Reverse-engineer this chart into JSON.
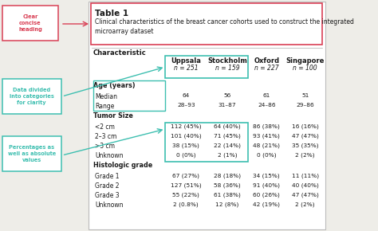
{
  "title": "Table 1",
  "subtitle": "Clinical characteristics of the breast cancer cohorts used to construct the integrated\nmicroarray dataset",
  "col_headers": [
    "Uppsala\nn = 251",
    "Stockholm\nn = 159",
    "Oxford\nn = 227",
    "Singapore\nn = 100"
  ],
  "rows": [
    {
      "category": "Age (years)",
      "bold": true,
      "values": [
        "",
        "",
        "",
        ""
      ]
    },
    {
      "category": "Median",
      "bold": false,
      "values": [
        "64",
        "56",
        "61",
        "51"
      ]
    },
    {
      "category": "Range",
      "bold": false,
      "values": [
        "28–93",
        "31–87",
        "24–86",
        "29–86"
      ]
    },
    {
      "category": "Tumor Size",
      "bold": true,
      "values": [
        "",
        "",
        "",
        ""
      ]
    },
    {
      "category": "<2 cm",
      "bold": false,
      "values": [
        "112 (45%)",
        "64 (40%)",
        "86 (38%)",
        "16 (16%)"
      ]
    },
    {
      "category": "2–3 cm",
      "bold": false,
      "values": [
        "101 (40%)",
        "71 (45%)",
        "93 (41%)",
        "47 (47%)"
      ]
    },
    {
      "category": ">3 cm",
      "bold": false,
      "values": [
        "38 (15%)",
        "22 (14%)",
        "48 (21%)",
        "35 (35%)"
      ]
    },
    {
      "category": "Unknown",
      "bold": false,
      "values": [
        "0 (0%)",
        "2 (1%)",
        "0 (0%)",
        "2 (2%)"
      ]
    },
    {
      "category": "Histologic grade",
      "bold": true,
      "values": [
        "",
        "",
        "",
        ""
      ]
    },
    {
      "category": "Grade 1",
      "bold": false,
      "values": [
        "67 (27%)",
        "28 (18%)",
        "34 (15%)",
        "11 (11%)"
      ]
    },
    {
      "category": "Grade 2",
      "bold": false,
      "values": [
        "127 (51%)",
        "58 (36%)",
        "91 (40%)",
        "40 (40%)"
      ]
    },
    {
      "category": "Grade 3",
      "bold": false,
      "values": [
        "55 (22%)",
        "61 (38%)",
        "60 (26%)",
        "47 (47%)"
      ]
    },
    {
      "category": "Unknown",
      "bold": false,
      "values": [
        "2 (0.8%)",
        "12 (8%)",
        "42 (19%)",
        "2 (2%)"
      ]
    }
  ],
  "bg_color": "#eeede8",
  "table_bg": "#ffffff",
  "teal": "#3dbfb0",
  "red": "#d94055",
  "ann_boxes": [
    {
      "label": "Clear\nconcise\nheading",
      "color": "#d94055"
    },
    {
      "label": "Data divided\ninto categories\nfor clarity",
      "color": "#3dbfb0"
    },
    {
      "label": "Percentages as\nwell as absolute\nvalues",
      "color": "#3dbfb0"
    }
  ]
}
